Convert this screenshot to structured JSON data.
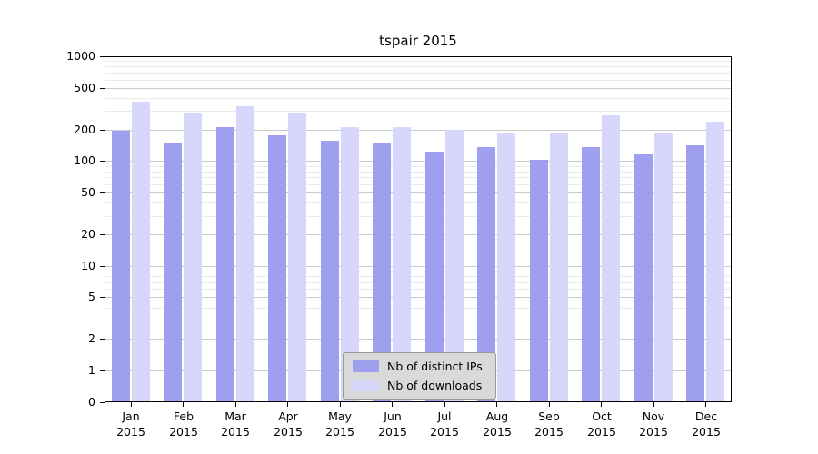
{
  "title": "tspair 2015",
  "chart_data": {
    "type": "bar",
    "categories": [
      "Jan",
      "Feb",
      "Mar",
      "Apr",
      "May",
      "Jun",
      "Jul",
      "Aug",
      "Sep",
      "Oct",
      "Nov",
      "Dec"
    ],
    "year": "2015",
    "series": [
      {
        "name": "Nb of distinct IPs",
        "color": "#9f9ff0",
        "values": [
          195,
          150,
          210,
          175,
          155,
          147,
          122,
          137,
          103,
          137,
          116,
          141
        ]
      },
      {
        "name": "Nb of downloads",
        "color": "#d7d7fb",
        "values": [
          370,
          290,
          335,
          292,
          212,
          212,
          200,
          188,
          182,
          272,
          186,
          238
        ]
      }
    ],
    "yticks": [
      0,
      1,
      2,
      5,
      10,
      20,
      50,
      100,
      200,
      500,
      1000
    ],
    "yscale": "symlog",
    "ylim": [
      0,
      1000
    ],
    "grid": true,
    "legend_position": "bottom-center"
  }
}
